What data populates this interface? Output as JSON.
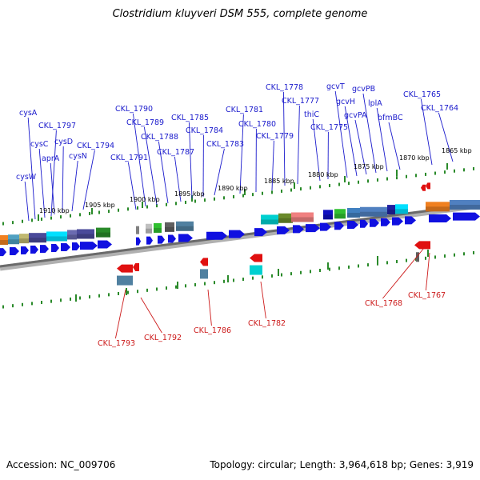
{
  "title": "Clostridium kluyveri DSM 555, complete genome",
  "accession_text": "Accession: NC_009706",
  "summary_text": "Topology: circular; Length: 3,964,618 bp; Genes: 3,919",
  "colors": {
    "forward_gene": "#1010e0",
    "reverse_gene": "#e01010",
    "backbone": "#808080",
    "tick": "#2a8a2a",
    "label_top": "#1a1acc",
    "label_bottom": "#cc1a1a"
  },
  "scale_labels": [
    "1910 kbp",
    "1905 kbp",
    "1900 kbp",
    "1895 kbp",
    "1890 kbp",
    "1885 kbp",
    "1880 kbp",
    "1875 kbp",
    "1870 kbp",
    "1865 kbp"
  ],
  "top_gene_labels": [
    "cysW",
    "cysA",
    "cysC",
    "CKL_1797",
    "aprA",
    "cysD",
    "cysN",
    "CKL_1794",
    "CKL_1791",
    "CKL_1790",
    "CKL_1789",
    "CKL_1788",
    "CKL_1787",
    "CKL_1785",
    "CKL_1784",
    "CKL_1783",
    "CKL_1781",
    "CKL_1780",
    "CKL_1779",
    "CKL_1778",
    "CKL_1777",
    "thiC",
    "CKL_1775",
    "gcvT",
    "gcvH",
    "gcvPA",
    "gcvPB",
    "lplA",
    "bfmBC",
    "CKL_1765",
    "CKL_1764"
  ],
  "bottom_gene_labels": [
    "CKL_1793",
    "CKL_1792",
    "CKL_1786",
    "CKL_1782",
    "CKL_1768",
    "CKL_1767"
  ]
}
